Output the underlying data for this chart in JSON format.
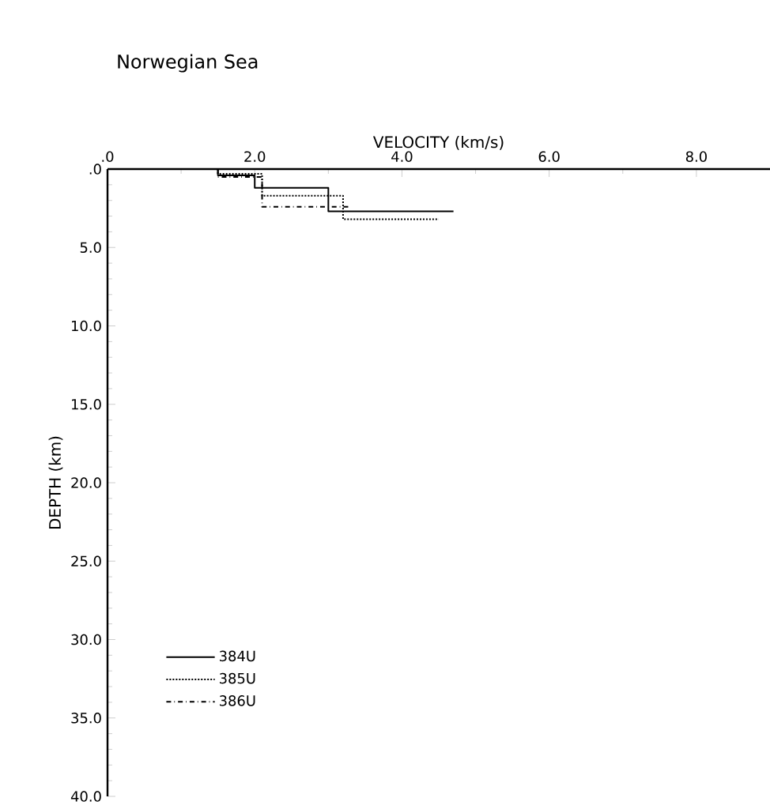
{
  "chart_data": {
    "type": "line",
    "title": "Norwegian Sea",
    "xlabel": "VELOCITY (km/s)",
    "ylabel": "DEPTH (km)",
    "xlim": [
      0,
      9
    ],
    "xticks": [
      {
        "value": 0,
        "label": ".0"
      },
      {
        "value": 2,
        "label": "2.0"
      },
      {
        "value": 4,
        "label": "4.0"
      },
      {
        "value": 6,
        "label": "6.0"
      },
      {
        "value": 8,
        "label": "8.0"
      }
    ],
    "ylim": [
      40,
      0
    ],
    "yticks": [
      {
        "value": 0,
        "label": ".0"
      },
      {
        "value": 5,
        "label": "5.0"
      },
      {
        "value": 10,
        "label": "10.0"
      },
      {
        "value": 15,
        "label": "15.0"
      },
      {
        "value": 20,
        "label": "20.0"
      },
      {
        "value": 25,
        "label": "25.0"
      },
      {
        "value": 30,
        "label": "30.0"
      },
      {
        "value": 35,
        "label": "35.0"
      },
      {
        "value": 40,
        "label": "40.0"
      }
    ],
    "grid": false,
    "legend": "bottom left",
    "marker": "none",
    "series": [
      {
        "name": "384U",
        "color": "#000000",
        "line_style": "solid",
        "x": [
          1.5,
          1.5,
          2.0,
          2.0,
          3.0,
          3.0,
          4.7
        ],
        "values": [
          0,
          0.4,
          0.4,
          1.2,
          1.2,
          2.7,
          2.7
        ]
      },
      {
        "name": "385U",
        "color": "#000000",
        "line_style": "dotted",
        "x": [
          1.5,
          1.5,
          2.1,
          2.1,
          3.2,
          3.2,
          4.5
        ],
        "values": [
          0,
          0.3,
          0.3,
          1.7,
          1.7,
          3.2,
          3.2
        ]
      },
      {
        "name": "386U",
        "color": "#000000",
        "line_style": "dashdot",
        "x": [
          1.5,
          1.5,
          2.1,
          2.1,
          3.3
        ],
        "values": [
          0,
          0.5,
          0.5,
          2.4,
          2.4
        ]
      }
    ]
  }
}
